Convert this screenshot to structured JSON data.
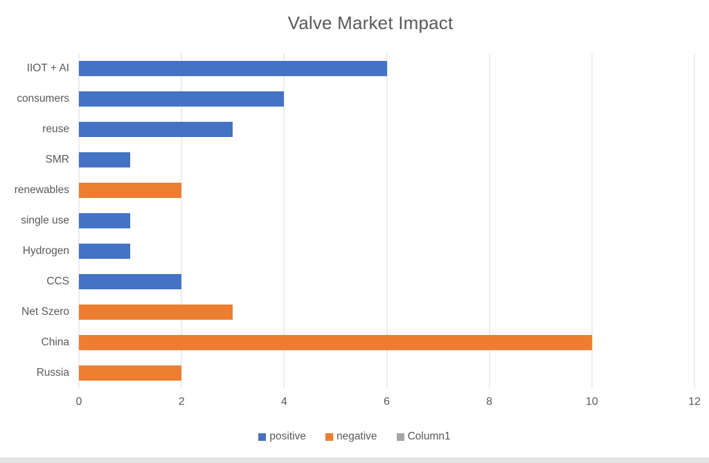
{
  "page": {
    "background": "#ffffff",
    "bottom_strip_color": "#e4e4e4"
  },
  "chart_data": {
    "type": "bar",
    "orientation": "horizontal",
    "title": "Valve Market Impact",
    "categories": [
      "IIOT + AI",
      "consumers",
      "reuse",
      "SMR",
      "renewables",
      "single use",
      "Hydrogen",
      "CCS",
      "Net Szero",
      "China",
      "Russia"
    ],
    "series": [
      {
        "name": "positive",
        "color": "#4472C4",
        "values": [
          6,
          4,
          3,
          1,
          0,
          1,
          1,
          2,
          0,
          0,
          0
        ]
      },
      {
        "name": "negative",
        "color": "#ED7D31",
        "values": [
          0,
          0,
          0,
          0,
          2,
          0,
          0,
          0,
          3,
          10,
          2
        ]
      },
      {
        "name": "Column1",
        "color": "#A5A5A5",
        "values": [
          0,
          0,
          0,
          0,
          0,
          0,
          0,
          0,
          0,
          0,
          0
        ]
      }
    ],
    "xlabel": "",
    "ylabel": "",
    "xlim": [
      0,
      12
    ],
    "xticks": [
      0,
      2,
      4,
      6,
      8,
      10,
      12
    ],
    "grid": "vertical",
    "gridline_color": "#d9d9d9",
    "text_color": "#595959",
    "legend_position": "bottom"
  }
}
